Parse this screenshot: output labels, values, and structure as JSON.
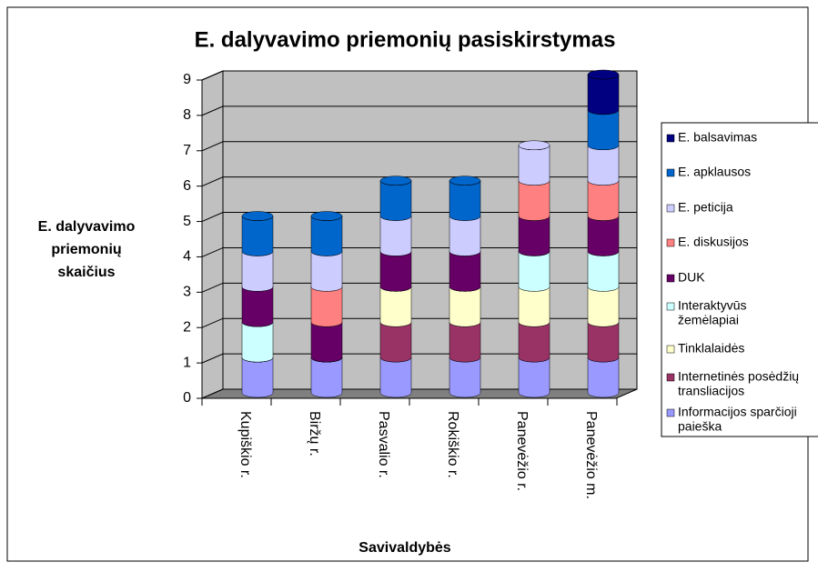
{
  "chart_data": {
    "type": "bar",
    "stacked": true,
    "title": "E. dalyvavimo priemonių pasiskirstymas",
    "y_label": [
      "E. dalyvavimo",
      "priemonių",
      "skaičius"
    ],
    "x_label": "Savivaldybės",
    "categories": [
      "Kupiškio r.",
      "Biržų r.",
      "Pasvalio r.",
      "Rokiškio r.",
      "Panevėžio r.",
      "Panevėžio m."
    ],
    "ylim": [
      0,
      9
    ],
    "yticks": [
      0,
      1,
      2,
      3,
      4,
      5,
      6,
      7,
      8,
      9
    ],
    "grid": true,
    "legend": "right",
    "series": [
      {
        "name": [
          "Informacijos sparčioji",
          "paieška"
        ],
        "color": "#9999ff",
        "values": [
          1,
          1,
          1,
          1,
          1,
          1
        ]
      },
      {
        "name": [
          "Internetinės posėdžių",
          "transliacijos"
        ],
        "color": "#993366",
        "values": [
          0,
          0,
          1,
          1,
          1,
          1
        ]
      },
      {
        "name": [
          "Tinklalaidės"
        ],
        "color": "#ffffcc",
        "values": [
          0,
          0,
          1,
          1,
          1,
          1
        ]
      },
      {
        "name": [
          "Interaktyvūs",
          "žemėlapiai"
        ],
        "color": "#ccffff",
        "values": [
          1,
          0,
          0,
          0,
          1,
          1
        ]
      },
      {
        "name": [
          "DUK"
        ],
        "color": "#660066",
        "values": [
          1,
          1,
          1,
          1,
          1,
          1
        ]
      },
      {
        "name": [
          "E. diskusijos"
        ],
        "color": "#ff8080",
        "values": [
          0,
          1,
          0,
          0,
          1,
          1
        ]
      },
      {
        "name": [
          "E. peticija"
        ],
        "color": "#ccccff",
        "values": [
          1,
          1,
          1,
          1,
          1,
          1
        ]
      },
      {
        "name": [
          "E. apklausos"
        ],
        "color": "#0066cc",
        "values": [
          1,
          1,
          1,
          1,
          0,
          1
        ]
      },
      {
        "name": [
          "E. balsavimas"
        ],
        "color": "#000080",
        "values": [
          0,
          0,
          0,
          0,
          0,
          1
        ]
      }
    ]
  }
}
